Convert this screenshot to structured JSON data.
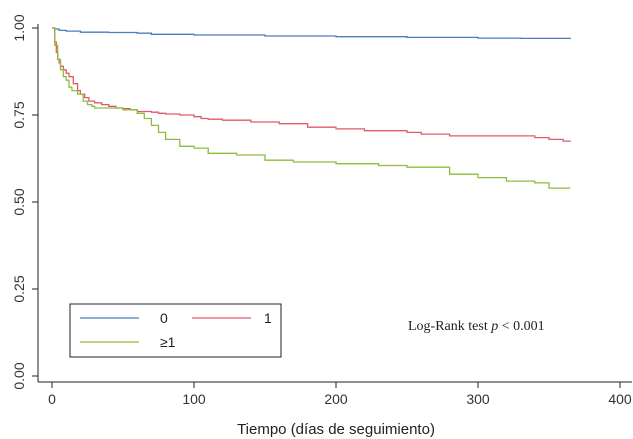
{
  "chart_data": {
    "type": "line",
    "step": true,
    "xlabel": "Tiempo (días de seguimiento)",
    "ylabel": "",
    "xlim": [
      0,
      400
    ],
    "ylim": [
      0,
      1
    ],
    "xticks": [
      0,
      100,
      200,
      300,
      400
    ],
    "xtick_labels": [
      "0",
      "100",
      "200",
      "300",
      "400"
    ],
    "yticks": [
      0,
      0.25,
      0.5,
      0.75,
      1
    ],
    "ytick_labels": [
      "0.00",
      "0.25",
      "0.50",
      "0.75",
      "1.00"
    ],
    "grid": false,
    "legend": {
      "position": "bottom-left",
      "entries": [
        {
          "label": "0",
          "color": "#4a7ebb"
        },
        {
          "label": "1",
          "color": "#e05a6e"
        },
        {
          "label": "≥1",
          "color": "#8fbc3c"
        }
      ]
    },
    "annotation": {
      "prefix": "Log-Rank test ",
      "italic": "p",
      "suffix": " < 0.001"
    },
    "series": [
      {
        "name": "0",
        "color": "#4a7ebb",
        "x": [
          0,
          2,
          5,
          10,
          20,
          40,
          60,
          70,
          100,
          150,
          200,
          250,
          300,
          330,
          365
        ],
        "y": [
          1.0,
          0.997,
          0.993,
          0.991,
          0.988,
          0.987,
          0.985,
          0.982,
          0.98,
          0.977,
          0.975,
          0.973,
          0.971,
          0.97,
          0.968
        ]
      },
      {
        "name": "1",
        "color": "#e05a6e",
        "x": [
          0,
          2,
          3,
          4,
          5,
          6,
          8,
          10,
          12,
          15,
          18,
          20,
          23,
          26,
          30,
          35,
          40,
          45,
          50,
          55,
          60,
          70,
          75,
          80,
          90,
          100,
          105,
          110,
          120,
          140,
          150,
          160,
          180,
          200,
          220,
          250,
          260,
          280,
          300,
          330,
          340,
          350,
          360,
          365
        ],
        "y": [
          1.0,
          0.96,
          0.93,
          0.91,
          0.9,
          0.89,
          0.88,
          0.87,
          0.86,
          0.84,
          0.82,
          0.81,
          0.8,
          0.79,
          0.785,
          0.78,
          0.775,
          0.77,
          0.768,
          0.765,
          0.76,
          0.758,
          0.755,
          0.753,
          0.75,
          0.745,
          0.74,
          0.738,
          0.735,
          0.73,
          0.73,
          0.725,
          0.715,
          0.71,
          0.705,
          0.7,
          0.695,
          0.69,
          0.69,
          0.69,
          0.685,
          0.68,
          0.675,
          0.673
        ]
      },
      {
        "name": "≥1",
        "color": "#8fbc3c",
        "x": [
          0,
          2,
          4,
          6,
          8,
          10,
          12,
          14,
          18,
          22,
          25,
          28,
          30,
          40,
          50,
          60,
          65,
          70,
          75,
          80,
          90,
          100,
          110,
          130,
          150,
          170,
          200,
          230,
          250,
          280,
          300,
          320,
          340,
          350,
          365
        ],
        "y": [
          1.0,
          0.95,
          0.91,
          0.88,
          0.86,
          0.85,
          0.83,
          0.82,
          0.81,
          0.79,
          0.78,
          0.775,
          0.77,
          0.77,
          0.765,
          0.755,
          0.74,
          0.72,
          0.7,
          0.68,
          0.66,
          0.655,
          0.64,
          0.635,
          0.62,
          0.615,
          0.61,
          0.605,
          0.6,
          0.58,
          0.57,
          0.56,
          0.555,
          0.54,
          0.54
        ]
      }
    ]
  }
}
